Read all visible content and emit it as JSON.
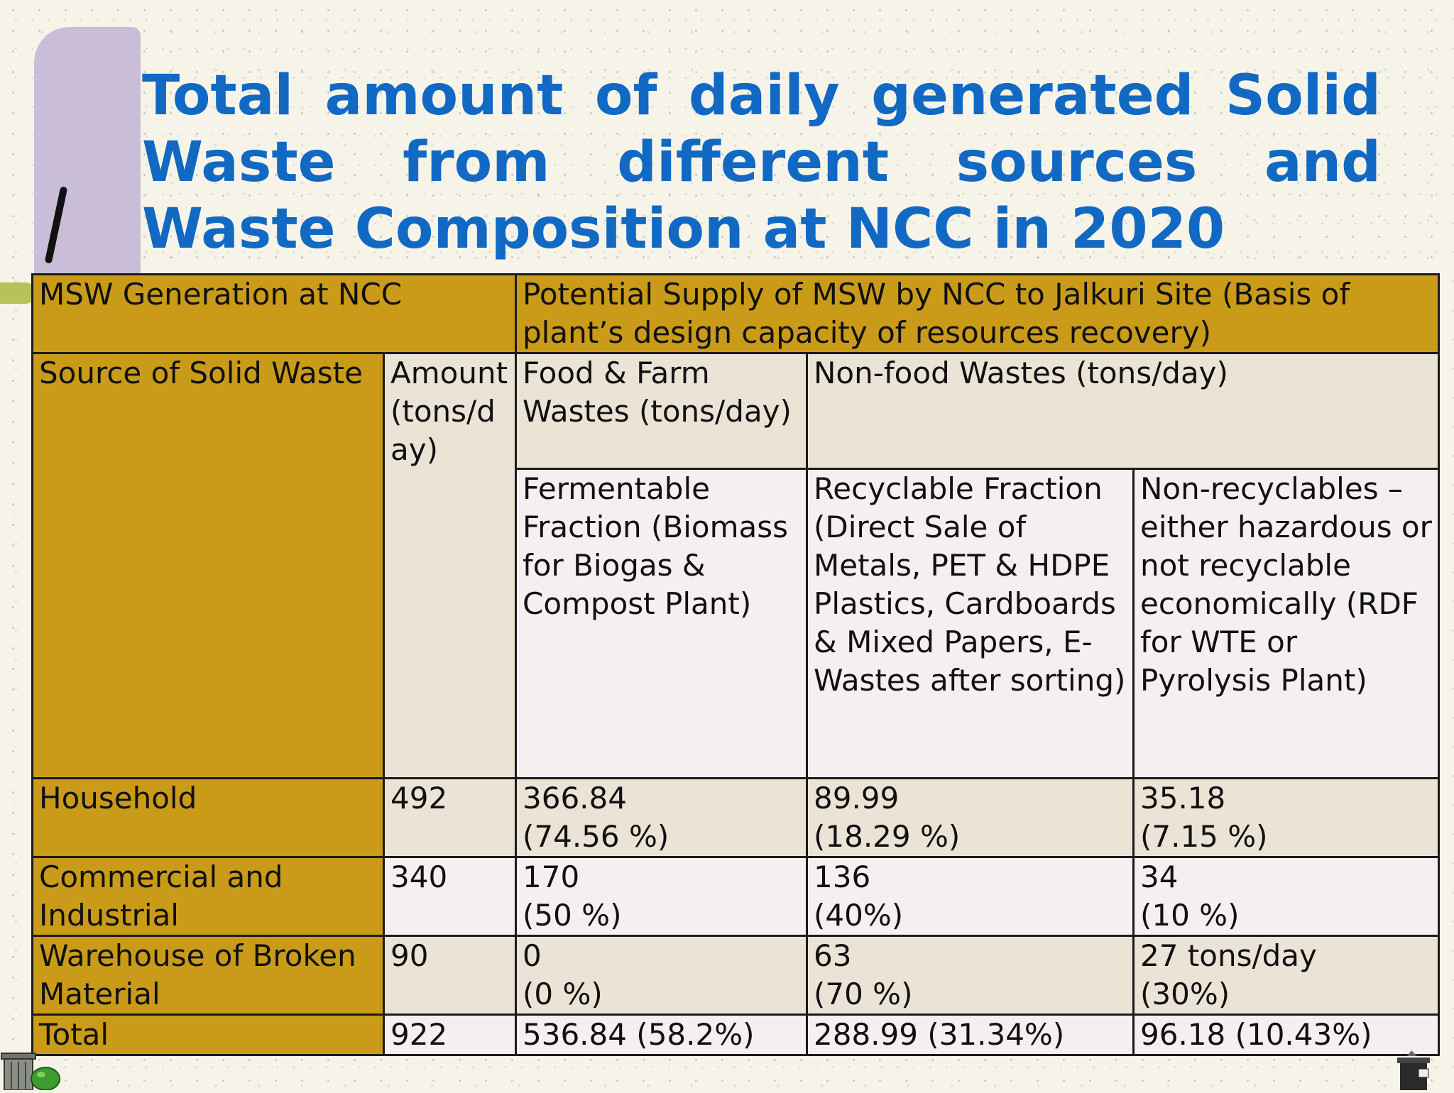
{
  "slide": {
    "title": "Total amount of daily generated Solid Waste from different sources and Waste Composition at NCC in 2020"
  },
  "table": {
    "header_left": "MSW Generation at NCC",
    "header_right": "Potential Supply of MSW by NCC to Jalkuri Site (Basis of plant’s design capacity of resources recovery)",
    "col_source": "Source of Solid Waste",
    "col_amount": "Amount (tons/day)",
    "col_food": "Food & Farm Wastes (tons/day)",
    "col_nonfood": "Non-food Wastes (tons/day)",
    "sub_fermentable": "Fermentable Fraction (Biomass for Biogas & Compost Plant)",
    "sub_recyclable": "Recyclable Fraction (Direct Sale of Metals, PET & HDPE Plastics, Cardboards & Mixed Papers, E-Wastes after sorting)",
    "sub_nonrecyclable": "Non-recyclables – either hazardous or not recyclable economically (RDF for WTE or Pyrolysis Plant)",
    "rows": [
      {
        "source": "Household",
        "amount": "492",
        "food_val": "366.84",
        "food_pct": "(74.56 %)",
        "rec_val": "89.99",
        "rec_pct": "(18.29 %)",
        "non_val": "35.18",
        "non_pct": "(7.15 %)"
      },
      {
        "source": "Commercial and Industrial",
        "amount": "340",
        "food_val": "170",
        "food_pct": "(50 %)",
        "rec_val": "136",
        "rec_pct": "(40%)",
        "non_val": "34",
        "non_pct": "(10 %)"
      },
      {
        "source": "Warehouse of Broken Material",
        "amount": "90",
        "food_val": "0",
        "food_pct": "(0 %)",
        "rec_val": "63",
        "rec_pct": "(70 %)",
        "non_val": "27 tons/day",
        "non_pct": "(30%)"
      }
    ],
    "total": {
      "label": "Total",
      "amount": "922",
      "food": "536.84 (58.2%)",
      "rec": "288.99 (31.34%)",
      "non": "96.18 (10.43%)"
    }
  },
  "decor": {
    "bar_color": "#c9bdd8",
    "title_color": "#1169c3",
    "gold_color": "#c99b18",
    "left_icon": "trash-can-icon",
    "right_icon": "recycle-bin-icon"
  }
}
